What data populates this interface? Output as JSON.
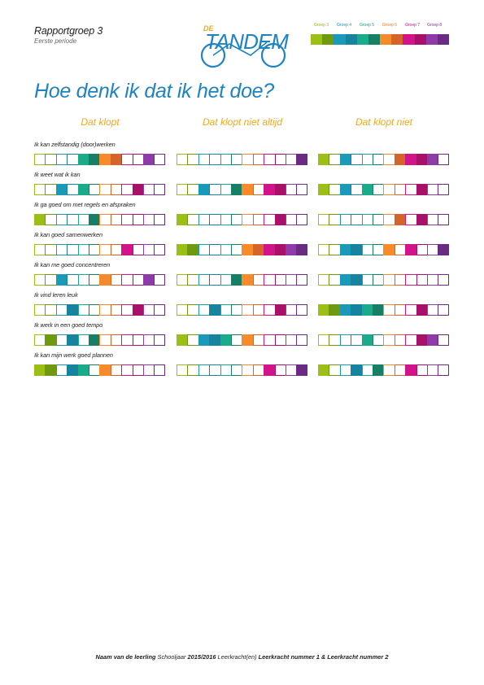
{
  "header": {
    "title": "Rapportgroep 3",
    "subtitle": "Eerste periode",
    "logo_small_text": "DE",
    "logo_text": "TANDEM"
  },
  "legend": [
    {
      "label": "Groep 3",
      "color": "#8fb512"
    },
    {
      "label": "Groep 4",
      "color": "#1a95b6"
    },
    {
      "label": "Groep 5",
      "color": "#1a9a7b"
    },
    {
      "label": "Groep 6",
      "color": "#f07a22"
    },
    {
      "label": "Groep 7",
      "color": "#c3127a"
    },
    {
      "label": "Groep 8",
      "color": "#7a2f96"
    }
  ],
  "palette": [
    "#9bbf16",
    "#6f9a10",
    "#1a9ab8",
    "#17849f",
    "#1aac8a",
    "#178064",
    "#f78b2b",
    "#d6632a",
    "#d2148a",
    "#a8106a",
    "#8e3aa8",
    "#6b2a84"
  ],
  "heading": "Hoe denk ik dat ik het doe?",
  "columns": [
    "Dat klopt",
    "Dat klopt niet altijd",
    "Dat klopt niet"
  ],
  "questions": [
    {
      "text": "Ik kan zelfstandig (door)werken",
      "fills": [
        [
          4,
          5,
          6,
          7,
          10
        ],
        [
          11
        ],
        [
          0,
          2,
          7,
          8,
          9,
          10
        ]
      ]
    },
    {
      "text": "Ik weet wat ik kan",
      "fills": [
        [
          2,
          4,
          9
        ],
        [
          2,
          5,
          6,
          8,
          9
        ],
        [
          0,
          2,
          4,
          9
        ]
      ]
    },
    {
      "text": "Ik ga goed om met regels en afspraken",
      "fills": [
        [
          0,
          5
        ],
        [
          0,
          9
        ],
        [
          7,
          9
        ]
      ]
    },
    {
      "text": "Ik kan goed samenwerken",
      "fills": [
        [
          8
        ],
        [
          0,
          1,
          6,
          7,
          8,
          9,
          10,
          11
        ],
        [
          2,
          3,
          6,
          8,
          11
        ]
      ]
    },
    {
      "text": "Ik kan me goed concentreren",
      "fills": [
        [
          2,
          6,
          10
        ],
        [
          5,
          6
        ],
        [
          2,
          3
        ]
      ]
    },
    {
      "text": "Ik vind leren leuk",
      "fills": [
        [
          3,
          9
        ],
        [
          3,
          9
        ],
        [
          0,
          1,
          2,
          3,
          4,
          5,
          9
        ]
      ]
    },
    {
      "text": "Ik werk in een goed tempo",
      "fills": [
        [
          1,
          3,
          5
        ],
        [
          0,
          2,
          3,
          4,
          6
        ],
        [
          4,
          9,
          10
        ]
      ]
    },
    {
      "text": "Ik kan mijn werk goed plannen",
      "fills": [
        [
          0,
          1,
          3,
          4,
          6
        ],
        [
          8,
          11
        ],
        [
          0,
          3,
          5,
          8
        ]
      ]
    }
  ],
  "footer": {
    "student": "Naam van de leerling",
    "school_year_label": "Schooljaar",
    "school_year": "2015/2016",
    "teachers_label": "Leerkracht(en)",
    "teachers": "Leerkracht nummer 1 & Leerkracht nummer 2"
  }
}
